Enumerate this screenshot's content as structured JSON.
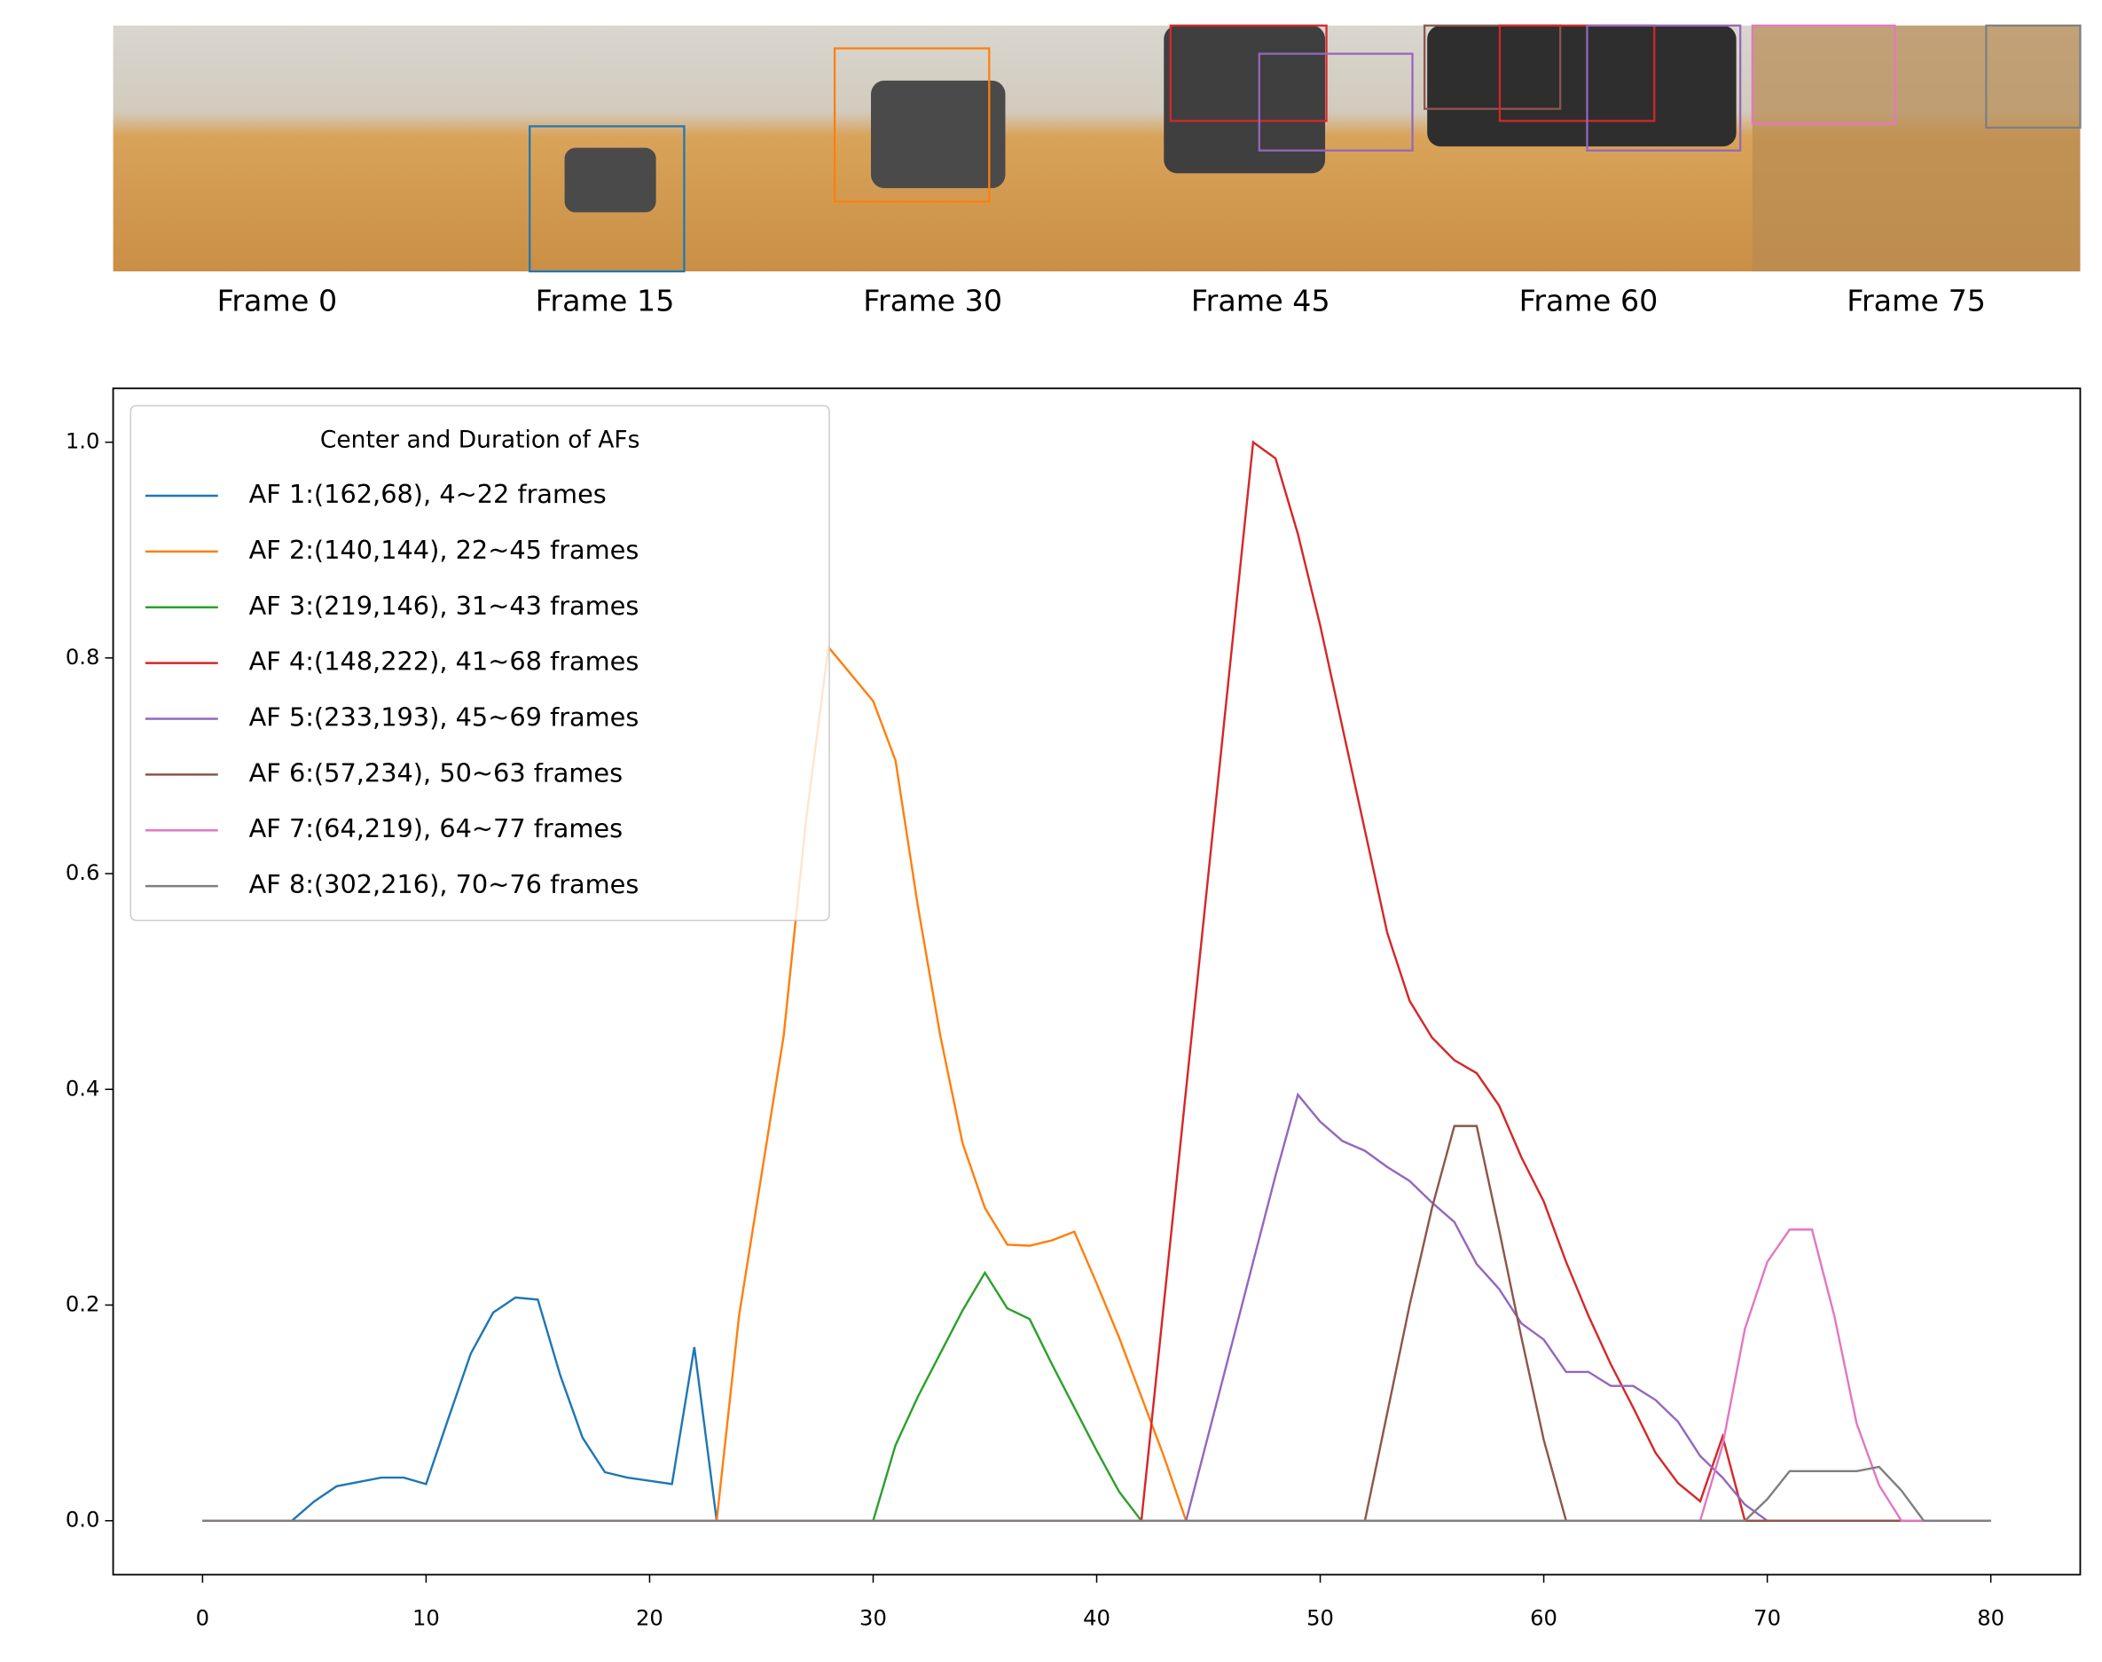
{
  "frames": [
    {
      "label": "Frame 0"
    },
    {
      "label": "Frame 15"
    },
    {
      "label": "Frame 30"
    },
    {
      "label": "Frame 45"
    },
    {
      "label": "Frame 60"
    },
    {
      "label": "Frame 75"
    }
  ],
  "chart_data": {
    "type": "line",
    "legend_title": "Center and Duration of AFs",
    "legend": "upper left",
    "x": [
      0,
      1,
      2,
      3,
      4,
      5,
      6,
      7,
      8,
      9,
      10,
      11,
      12,
      13,
      14,
      15,
      16,
      17,
      18,
      19,
      20,
      21,
      22,
      23,
      24,
      25,
      26,
      27,
      28,
      29,
      30,
      31,
      32,
      33,
      34,
      35,
      36,
      37,
      38,
      39,
      40,
      41,
      42,
      43,
      44,
      45,
      46,
      47,
      48,
      49,
      50,
      51,
      52,
      53,
      54,
      55,
      56,
      57,
      58,
      59,
      60,
      61,
      62,
      63,
      64,
      65,
      66,
      67,
      68,
      69,
      70,
      71,
      72,
      73,
      74,
      75,
      76,
      77,
      78,
      79,
      80
    ],
    "xlim": [
      -4,
      84
    ],
    "xticks": [
      0,
      10,
      20,
      30,
      40,
      50,
      60,
      70,
      80
    ],
    "ylim": [
      -0.05,
      1.05
    ],
    "yticks": [
      {
        "value": 0,
        "label": "0.0"
      },
      0.2,
      0.4,
      0.6,
      0.8,
      {
        "value": 1,
        "label": "1.0"
      }
    ],
    "series": [
      {
        "name": "AF 1:(162,68), 4~22 frames",
        "color": "#1f77b4",
        "values": [
          0,
          0,
          0,
          0,
          0,
          0.018,
          0.032,
          0.036,
          0.04,
          0.04,
          0.034,
          0.095,
          0.155,
          0.193,
          0.207,
          0.205,
          0.135,
          0.077,
          0.045,
          0.04,
          0.037,
          0.034,
          0.161,
          0,
          0,
          0,
          0,
          0,
          0,
          0,
          0,
          0,
          0,
          0,
          0,
          0,
          0,
          0,
          0,
          0,
          0,
          0,
          0,
          0,
          0,
          0,
          0,
          0,
          0,
          0,
          0,
          0,
          0,
          0,
          0,
          0,
          0,
          0,
          0,
          0,
          0,
          0,
          0,
          0,
          0,
          0,
          0,
          0,
          0,
          0,
          0,
          0,
          0,
          0,
          0,
          0,
          0,
          0,
          0,
          0,
          0
        ]
      },
      {
        "name": "AF 2:(140,144), 22~45 frames",
        "color": "#ff7f0e",
        "values": [
          0,
          0,
          0,
          0,
          0,
          0,
          0,
          0,
          0,
          0,
          0,
          0,
          0,
          0,
          0,
          0,
          0,
          0,
          0,
          0,
          0,
          0,
          0,
          0,
          0.19,
          0.32,
          0.45,
          0.65,
          0.81,
          0.785,
          0.76,
          0.705,
          0.57,
          0.45,
          0.35,
          0.29,
          0.256,
          0.255,
          0.26,
          0.268,
          0.22,
          0.17,
          0.115,
          0.06,
          0,
          0,
          0,
          0,
          0,
          0,
          0,
          0,
          0,
          0,
          0,
          0,
          0,
          0,
          0,
          0,
          0,
          0,
          0,
          0,
          0,
          0,
          0,
          0,
          0,
          0,
          0,
          0,
          0,
          0,
          0,
          0,
          0,
          0,
          0,
          0,
          0
        ]
      },
      {
        "name": "AF 3:(219,146), 31~43 frames",
        "color": "#2ca02c",
        "values": [
          0,
          0,
          0,
          0,
          0,
          0,
          0,
          0,
          0,
          0,
          0,
          0,
          0,
          0,
          0,
          0,
          0,
          0,
          0,
          0,
          0,
          0,
          0,
          0,
          0,
          0,
          0,
          0,
          0,
          0,
          0,
          0.07,
          0.115,
          0.155,
          0.195,
          0.23,
          0.197,
          0.187,
          0.145,
          0.105,
          0.065,
          0.027,
          0,
          0,
          0,
          0,
          0,
          0,
          0,
          0,
          0,
          0,
          0,
          0,
          0,
          0,
          0,
          0,
          0,
          0,
          0,
          0,
          0,
          0,
          0,
          0,
          0,
          0,
          0,
          0,
          0,
          0,
          0,
          0,
          0,
          0,
          0,
          0,
          0,
          0,
          0
        ]
      },
      {
        "name": "AF 4:(148,222), 41~68 frames",
        "color": "#d62728",
        "values": [
          0,
          0,
          0,
          0,
          0,
          0,
          0,
          0,
          0,
          0,
          0,
          0,
          0,
          0,
          0,
          0,
          0,
          0,
          0,
          0,
          0,
          0,
          0,
          0,
          0,
          0,
          0,
          0,
          0,
          0,
          0,
          0,
          0,
          0,
          0,
          0,
          0,
          0,
          0,
          0,
          0,
          0,
          0,
          0.2,
          0.4,
          0.6,
          0.8,
          1.0,
          0.985,
          0.915,
          0.83,
          0.735,
          0.64,
          0.545,
          0.482,
          0.448,
          0.427,
          0.415,
          0.385,
          0.337,
          0.296,
          0.24,
          0.19,
          0.145,
          0.105,
          0.063,
          0.035,
          0.018,
          0.078,
          0,
          0,
          0,
          0,
          0,
          0,
          0,
          0,
          0,
          0,
          0,
          0
        ]
      },
      {
        "name": "AF 5:(233,193), 45~69 frames",
        "color": "#9467bd",
        "values": [
          0,
          0,
          0,
          0,
          0,
          0,
          0,
          0,
          0,
          0,
          0,
          0,
          0,
          0,
          0,
          0,
          0,
          0,
          0,
          0,
          0,
          0,
          0,
          0,
          0,
          0,
          0,
          0,
          0,
          0,
          0,
          0,
          0,
          0,
          0,
          0,
          0,
          0,
          0,
          0,
          0,
          0,
          0,
          0,
          0,
          0.08,
          0.16,
          0.24,
          0.32,
          0.395,
          0.37,
          0.352,
          0.343,
          0.328,
          0.315,
          0.295,
          0.277,
          0.238,
          0.215,
          0.183,
          0.168,
          0.138,
          0.138,
          0.125,
          0.125,
          0.112,
          0.092,
          0.06,
          0.04,
          0.015,
          0,
          0,
          0,
          0,
          0,
          0,
          0,
          0,
          0,
          0,
          0
        ]
      },
      {
        "name": "AF 6:(57,234), 50~63 frames",
        "color": "#8c564b",
        "values": [
          0,
          0,
          0,
          0,
          0,
          0,
          0,
          0,
          0,
          0,
          0,
          0,
          0,
          0,
          0,
          0,
          0,
          0,
          0,
          0,
          0,
          0,
          0,
          0,
          0,
          0,
          0,
          0,
          0,
          0,
          0,
          0,
          0,
          0,
          0,
          0,
          0,
          0,
          0,
          0,
          0,
          0,
          0,
          0,
          0,
          0,
          0,
          0,
          0,
          0,
          0,
          0,
          0,
          0.1,
          0.2,
          0.29,
          0.366,
          0.366,
          0.27,
          0.17,
          0.075,
          0,
          0,
          0,
          0,
          0,
          0,
          0,
          0,
          0,
          0,
          0,
          0,
          0,
          0,
          0,
          0,
          0,
          0,
          0,
          0
        ]
      },
      {
        "name": "AF 7:(64,219), 64~77 frames",
        "color": "#e377c2",
        "values": [
          0,
          0,
          0,
          0,
          0,
          0,
          0,
          0,
          0,
          0,
          0,
          0,
          0,
          0,
          0,
          0,
          0,
          0,
          0,
          0,
          0,
          0,
          0,
          0,
          0,
          0,
          0,
          0,
          0,
          0,
          0,
          0,
          0,
          0,
          0,
          0,
          0,
          0,
          0,
          0,
          0,
          0,
          0,
          0,
          0,
          0,
          0,
          0,
          0,
          0,
          0,
          0,
          0,
          0,
          0,
          0,
          0,
          0,
          0,
          0,
          0,
          0,
          0,
          0,
          0,
          0,
          0,
          0,
          0.07,
          0.178,
          0.24,
          0.27,
          0.27,
          0.19,
          0.09,
          0.033,
          0,
          0,
          0,
          0,
          0
        ]
      },
      {
        "name": "AF 8:(302,216), 70~76 frames",
        "color": "#7f7f7f",
        "values": [
          0,
          0,
          0,
          0,
          0,
          0,
          0,
          0,
          0,
          0,
          0,
          0,
          0,
          0,
          0,
          0,
          0,
          0,
          0,
          0,
          0,
          0,
          0,
          0,
          0,
          0,
          0,
          0,
          0,
          0,
          0,
          0,
          0,
          0,
          0,
          0,
          0,
          0,
          0,
          0,
          0,
          0,
          0,
          0,
          0,
          0,
          0,
          0,
          0,
          0,
          0,
          0,
          0,
          0,
          0,
          0,
          0,
          0,
          0,
          0,
          0,
          0,
          0,
          0,
          0,
          0,
          0,
          0,
          0,
          0,
          0.02,
          0.046,
          0.046,
          0.046,
          0.046,
          0.05,
          0.028,
          0,
          0,
          0,
          0
        ]
      }
    ]
  }
}
